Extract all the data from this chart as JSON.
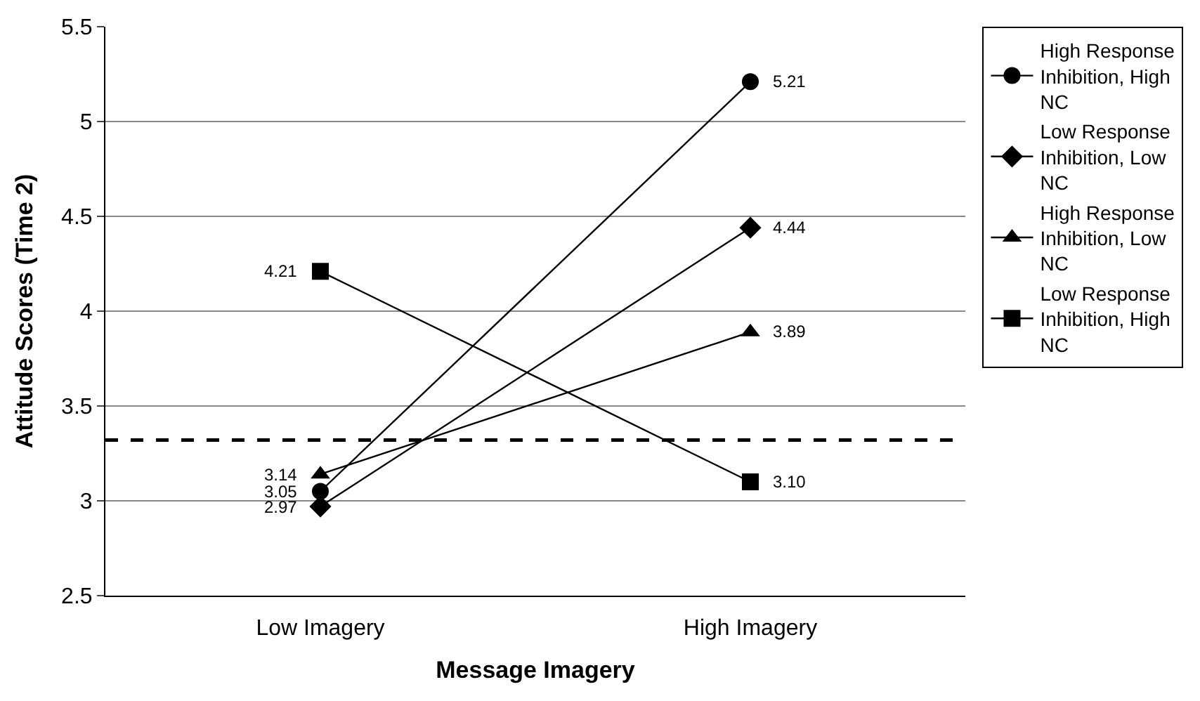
{
  "chart_data": {
    "type": "line",
    "xlabel": "Message Imagery",
    "ylabel": "Attitude Scores (Time 2)",
    "categories": [
      "Low Imagery",
      "High Imagery"
    ],
    "series": [
      {
        "name": "High Response Inhibition, High NC",
        "color": "#000000",
        "marker": "circle",
        "values": [
          3.05,
          5.21
        ],
        "value_labels": [
          "3.05",
          "5.21"
        ]
      },
      {
        "name": "Low Response Inhibition, Low NC",
        "color": "#000000",
        "marker": "diamond",
        "values": [
          2.97,
          4.44
        ],
        "value_labels": [
          "2.97",
          "4.44"
        ]
      },
      {
        "name": "High Response Inhibition, Low NC",
        "color": "#000000",
        "marker": "triangle",
        "values": [
          3.14,
          3.89
        ],
        "value_labels": [
          "3.14",
          "3.89"
        ]
      },
      {
        "name": "Low Response Inhibition, High NC",
        "color": "#000000",
        "marker": "square",
        "values": [
          4.21,
          3.1
        ],
        "value_labels": [
          "4.21",
          "3.10"
        ]
      }
    ],
    "ylim": [
      2.5,
      5.5
    ],
    "yticks": [
      2.5,
      3,
      3.5,
      4,
      4.5,
      5,
      5.5
    ],
    "grid": "y",
    "legend": "right",
    "line_style": "solid",
    "ref_lines": [
      {
        "axis": "y",
        "value": 3.32,
        "color": "#000000",
        "line_style": "dashed"
      }
    ]
  }
}
